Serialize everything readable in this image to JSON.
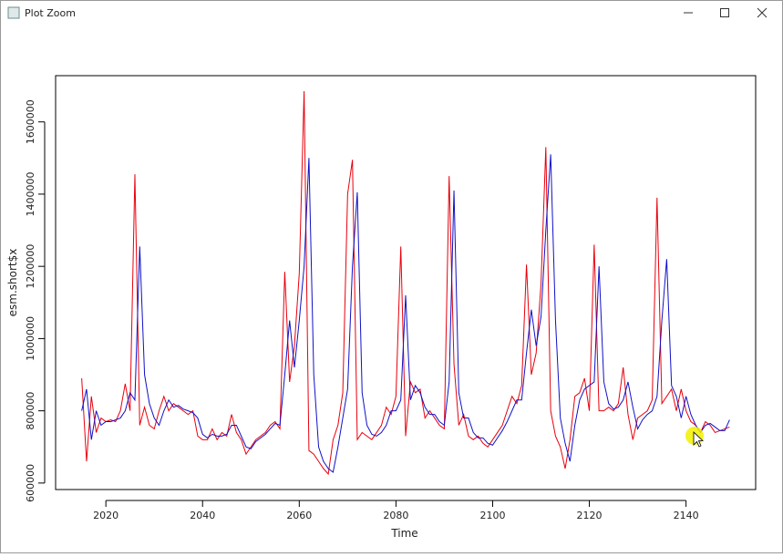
{
  "window": {
    "title": "Plot Zoom"
  },
  "chart_data": {
    "type": "line",
    "x_label": "Time",
    "y_label": "esm.short$x",
    "x": [
      2015,
      2016,
      2017,
      2018,
      2019,
      2020,
      2021,
      2022,
      2023,
      2024,
      2025,
      2026,
      2027,
      2028,
      2029,
      2030,
      2031,
      2032,
      2033,
      2034,
      2035,
      2036,
      2037,
      2038,
      2039,
      2040,
      2041,
      2042,
      2043,
      2044,
      2045,
      2046,
      2047,
      2048,
      2049,
      2050,
      2051,
      2052,
      2053,
      2054,
      2055,
      2056,
      2057,
      2058,
      2059,
      2060,
      2061,
      2062,
      2063,
      2064,
      2065,
      2066,
      2067,
      2068,
      2069,
      2070,
      2071,
      2072,
      2073,
      2074,
      2075,
      2076,
      2077,
      2078,
      2079,
      2080,
      2081,
      2082,
      2083,
      2084,
      2085,
      2086,
      2087,
      2088,
      2089,
      2090,
      2091,
      2092,
      2093,
      2094,
      2095,
      2096,
      2097,
      2098,
      2099,
      2100,
      2101,
      2102,
      2103,
      2104,
      2105,
      2106,
      2107,
      2108,
      2109,
      2110,
      2111,
      2112,
      2113,
      2114,
      2115,
      2116,
      2117,
      2118,
      2119,
      2120,
      2121,
      2122,
      2123,
      2124,
      2125,
      2126,
      2127,
      2128,
      2129,
      2130,
      2131,
      2132,
      2133,
      2134,
      2135,
      2136,
      2137,
      2138,
      2139,
      2140,
      2141,
      2142,
      2143,
      2144,
      2145,
      2146,
      2147,
      2148,
      2149
    ],
    "series": [
      {
        "color": "#e8000b",
        "values": [
          890000,
          660000,
          840000,
          740000,
          780000,
          770000,
          775000,
          770000,
          800000,
          875000,
          800000,
          1455000,
          760000,
          810000,
          760000,
          750000,
          800000,
          840000,
          800000,
          820000,
          810000,
          800000,
          790000,
          800000,
          730000,
          720000,
          720000,
          750000,
          720000,
          740000,
          730000,
          790000,
          740000,
          720000,
          680000,
          700000,
          720000,
          730000,
          740000,
          760000,
          770000,
          750000,
          1185000,
          880000,
          980000,
          1180000,
          1685000,
          690000,
          680000,
          660000,
          640000,
          625000,
          720000,
          760000,
          850000,
          1400000,
          1495000,
          720000,
          740000,
          730000,
          720000,
          740000,
          760000,
          810000,
          790000,
          840000,
          1255000,
          730000,
          880000,
          850000,
          860000,
          780000,
          800000,
          780000,
          760000,
          750000,
          1450000,
          930000,
          760000,
          790000,
          730000,
          720000,
          730000,
          710000,
          700000,
          720000,
          740000,
          760000,
          800000,
          840000,
          820000,
          870000,
          1205000,
          900000,
          960000,
          1150000,
          1530000,
          800000,
          730000,
          700000,
          640000,
          720000,
          840000,
          850000,
          890000,
          800000,
          1260000,
          800000,
          800000,
          810000,
          800000,
          820000,
          920000,
          790000,
          720000,
          780000,
          790000,
          800000,
          830000,
          1390000,
          820000,
          840000,
          860000,
          800000,
          860000,
          800000,
          770000,
          760000,
          740000,
          770000,
          760000,
          740000,
          745000,
          750000,
          755000
        ]
      },
      {
        "color": "#1010c8",
        "values": [
          800000,
          860000,
          720000,
          800000,
          760000,
          770000,
          770000,
          775000,
          780000,
          800000,
          850000,
          830000,
          1255000,
          900000,
          820000,
          780000,
          760000,
          800000,
          830000,
          810000,
          815000,
          805000,
          800000,
          795000,
          780000,
          735000,
          725000,
          735000,
          730000,
          730000,
          735000,
          760000,
          760000,
          730000,
          700000,
          695000,
          715000,
          725000,
          735000,
          750000,
          765000,
          760000,
          900000,
          1050000,
          920000,
          1050000,
          1200000,
          1500000,
          900000,
          700000,
          660000,
          640000,
          630000,
          700000,
          780000,
          860000,
          1200000,
          1405000,
          850000,
          760000,
          735000,
          730000,
          740000,
          760000,
          800000,
          800000,
          830000,
          1120000,
          830000,
          870000,
          850000,
          810000,
          790000,
          790000,
          770000,
          760000,
          880000,
          1410000,
          850000,
          780000,
          780000,
          740000,
          725000,
          725000,
          710000,
          705000,
          725000,
          745000,
          770000,
          800000,
          830000,
          830000,
          960000,
          1080000,
          980000,
          1060000,
          1300000,
          1510000,
          1050000,
          780000,
          710000,
          660000,
          760000,
          830000,
          860000,
          870000,
          880000,
          1200000,
          880000,
          820000,
          805000,
          810000,
          830000,
          880000,
          810000,
          750000,
          775000,
          790000,
          800000,
          840000,
          1050000,
          1220000,
          870000,
          840000,
          780000,
          840000,
          790000,
          760000,
          740000,
          760000,
          765000,
          755000,
          745000,
          745000,
          775000
        ]
      }
    ],
    "xlim": [
      2009.6,
      2154.4
    ],
    "ylim": [
      582000,
      1728000
    ],
    "xticks": [
      2020,
      2040,
      2060,
      2080,
      2100,
      2120,
      2140
    ],
    "yticks": [
      600000,
      800000,
      1000000,
      1200000,
      1400000,
      1600000
    ],
    "grid": false
  }
}
